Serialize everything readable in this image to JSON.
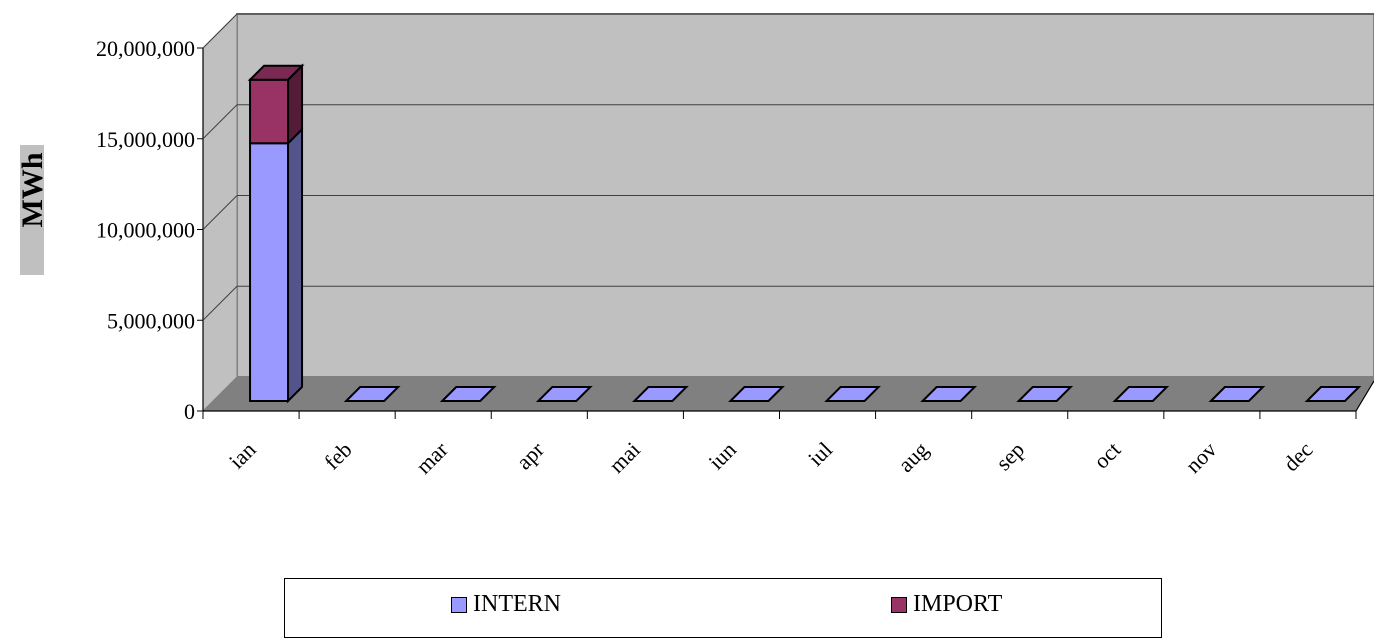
{
  "chart_data": {
    "type": "bar",
    "stacked": true,
    "three_d": true,
    "categories": [
      "ian",
      "feb",
      "mar",
      "apr",
      "mai",
      "iun",
      "iul",
      "aug",
      "sep",
      "oct",
      "nov",
      "dec"
    ],
    "series": [
      {
        "name": "INTERN",
        "color": "#9999ff",
        "values": [
          14200000,
          0,
          0,
          0,
          0,
          0,
          0,
          0,
          0,
          0,
          0,
          0
        ]
      },
      {
        "name": "IMPORT",
        "color": "#993366",
        "values": [
          3500000,
          0,
          0,
          0,
          0,
          0,
          0,
          0,
          0,
          0,
          0,
          0
        ]
      }
    ],
    "ylabel": "MWh",
    "ylim": [
      0,
      20000000
    ],
    "yticks": [
      "0",
      "5,000,000",
      "10,000,000",
      "15,000,000",
      "20,000,000"
    ],
    "ytick_values": [
      0,
      5000000,
      10000000,
      15000000,
      20000000
    ],
    "grid": true,
    "legend_position": "bottom",
    "wall_color": "#c0c0c0",
    "floor_color": "#808080"
  }
}
